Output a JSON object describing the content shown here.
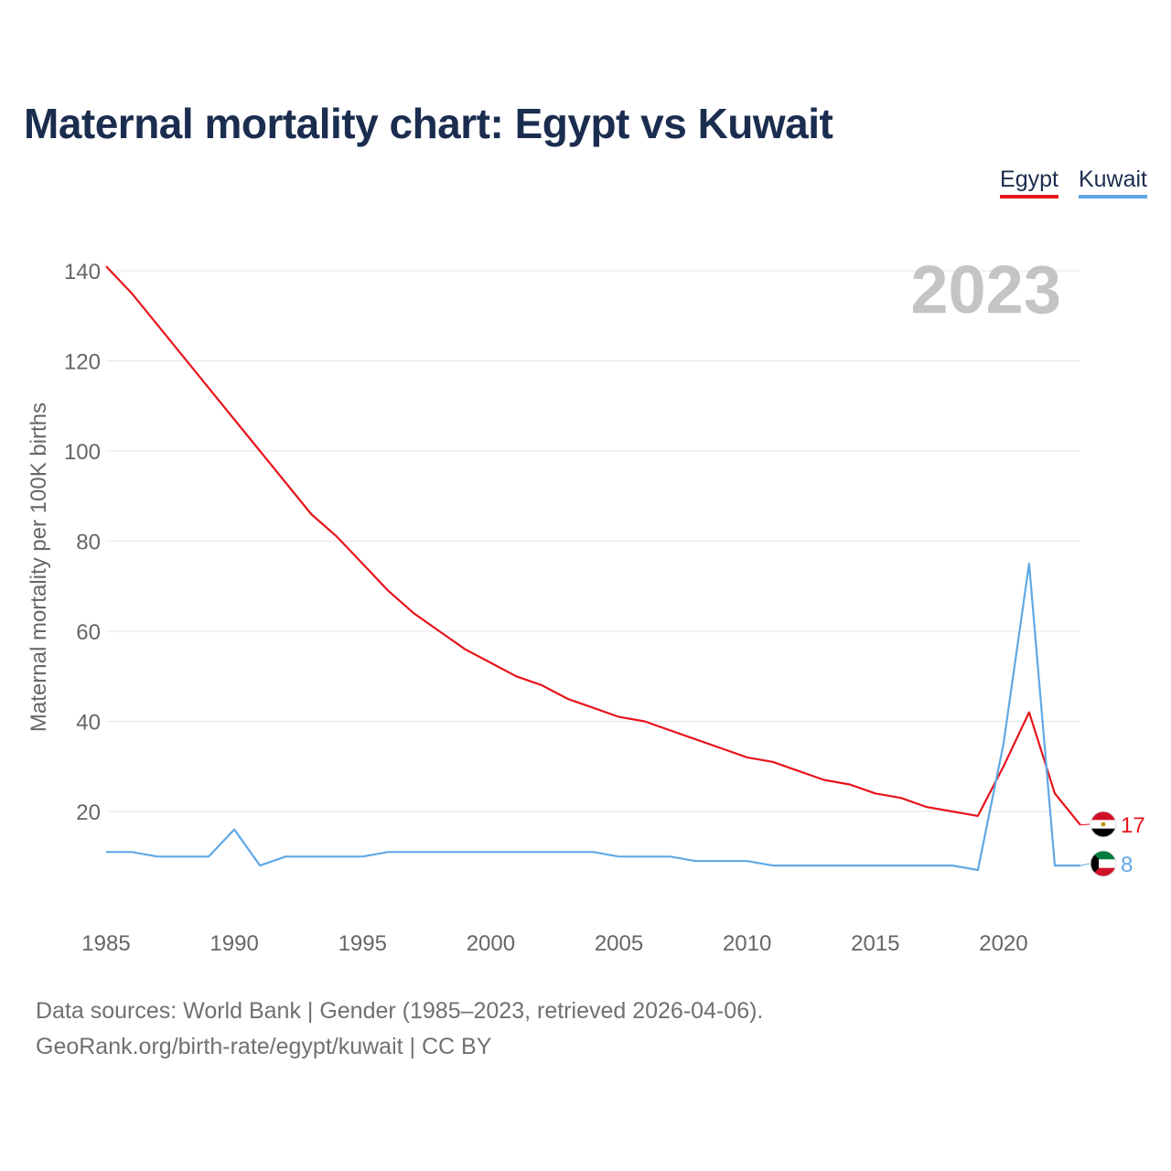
{
  "title": "Maternal mortality chart: Egypt vs Kuwait",
  "legend": [
    {
      "label": "Egypt",
      "color": "#e8141b"
    },
    {
      "label": "Kuwait",
      "color": "#5fa8e6"
    }
  ],
  "year_watermark": "2023",
  "source": {
    "line1": "Data sources: World Bank | Gender (1985–2023, retrieved 2026-04-06).",
    "line2": "GeoRank.org/birth-rate/egypt/kuwait | CC BY"
  },
  "chart_data": {
    "type": "line",
    "title": "Maternal mortality chart: Egypt vs Kuwait",
    "xlabel": "",
    "ylabel": "Maternal mortality per 100K births",
    "xlim": [
      1985,
      2023
    ],
    "ylim": [
      0,
      145
    ],
    "xticks": [
      1985,
      1990,
      1995,
      2000,
      2005,
      2010,
      2015,
      2020
    ],
    "yticks": [
      20,
      40,
      60,
      80,
      100,
      120,
      140
    ],
    "grid": true,
    "x": [
      1985,
      1986,
      1987,
      1988,
      1989,
      1990,
      1991,
      1992,
      1993,
      1994,
      1995,
      1996,
      1997,
      1998,
      1999,
      2000,
      2001,
      2002,
      2003,
      2004,
      2005,
      2006,
      2007,
      2008,
      2009,
      2010,
      2011,
      2012,
      2013,
      2014,
      2015,
      2016,
      2017,
      2018,
      2019,
      2020,
      2021,
      2022,
      2023
    ],
    "series": [
      {
        "name": "Egypt",
        "color": "#e8141b",
        "end_label": "17",
        "flag": "egypt-flag",
        "values": [
          141,
          135,
          128,
          121,
          114,
          107,
          100,
          93,
          86,
          81,
          75,
          69,
          64,
          60,
          56,
          53,
          50,
          48,
          45,
          43,
          41,
          40,
          38,
          36,
          34,
          32,
          31,
          29,
          27,
          26,
          24,
          23,
          21,
          20,
          19,
          30,
          42,
          24,
          17
        ]
      },
      {
        "name": "Kuwait",
        "color": "#5fa8e6",
        "end_label": "8",
        "flag": "kuwait-flag",
        "values": [
          11,
          11,
          10,
          10,
          10,
          16,
          8,
          10,
          10,
          10,
          10,
          11,
          11,
          11,
          11,
          11,
          11,
          11,
          11,
          11,
          10,
          10,
          10,
          9,
          9,
          9,
          8,
          8,
          8,
          8,
          8,
          8,
          8,
          8,
          7,
          35,
          75,
          8,
          8
        ]
      }
    ]
  }
}
